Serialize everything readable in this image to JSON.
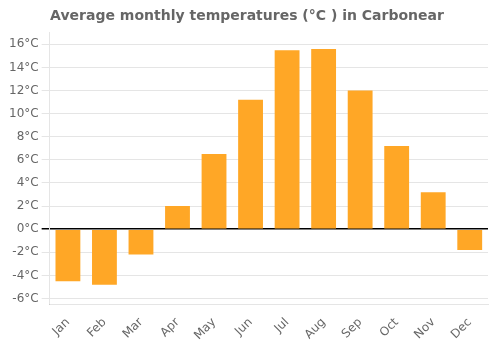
{
  "chart_data": {
    "type": "bar",
    "title": "Average monthly temperatures (°C ) in Carbonear",
    "categories": [
      "Jan",
      "Feb",
      "Mar",
      "Apr",
      "May",
      "Jun",
      "Jul",
      "Aug",
      "Sep",
      "Oct",
      "Nov",
      "Dec"
    ],
    "values": [
      -4.5,
      -4.8,
      -2.2,
      2.0,
      6.5,
      11.2,
      15.5,
      15.6,
      12.0,
      7.2,
      3.2,
      -1.8
    ],
    "color": "#FFA726",
    "ylim": [
      -6.5,
      17.0
    ],
    "yticks": [
      {
        "value": -6,
        "label": "-6°C"
      },
      {
        "value": -4,
        "label": "-4°C"
      },
      {
        "value": -2,
        "label": "-2°C"
      },
      {
        "value": 0,
        "label": "0°C"
      },
      {
        "value": 2,
        "label": "2°C"
      },
      {
        "value": 4,
        "label": "4°C"
      },
      {
        "value": 6,
        "label": "6°C"
      },
      {
        "value": 8,
        "label": "8°C"
      },
      {
        "value": 10,
        "label": "10°C"
      },
      {
        "value": 12,
        "label": "12°C"
      },
      {
        "value": 14,
        "label": "14°C"
      },
      {
        "value": 16,
        "label": "16°C"
      }
    ],
    "grid": true
  }
}
